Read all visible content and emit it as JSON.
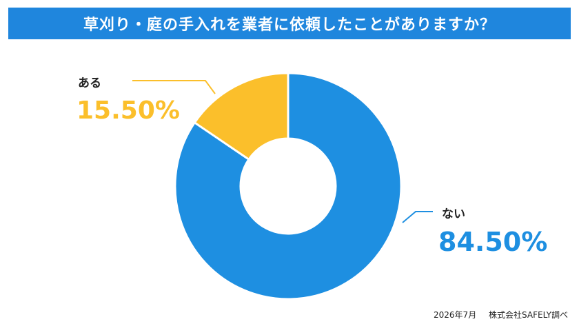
{
  "title": "草刈り・庭の手入れを業者に依頼したことがありますか？",
  "footer": {
    "date": "2026年7月",
    "source": "株式会社SAFELY調べ"
  },
  "colors": {
    "title_bg": "#1f86dd",
    "yes": "#fbbf2b",
    "no": "#1e8fe1"
  },
  "chart_data": {
    "type": "pie",
    "donut": true,
    "categories": [
      "ある",
      "ない"
    ],
    "values": [
      15.5,
      84.5
    ],
    "value_labels": [
      "15.50%",
      "84.50%"
    ],
    "colors": [
      "#fbbf2b",
      "#1e8fe1"
    ]
  }
}
